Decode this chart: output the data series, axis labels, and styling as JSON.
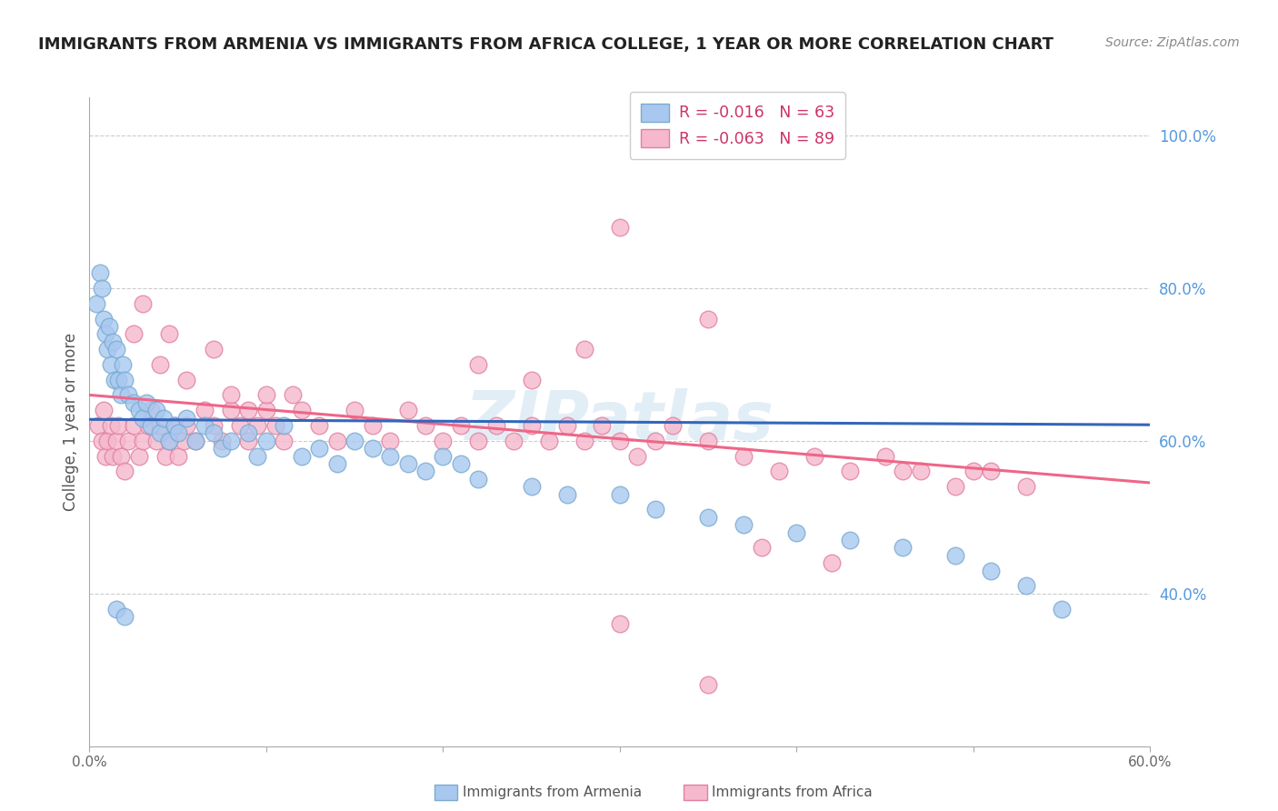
{
  "title": "IMMIGRANTS FROM ARMENIA VS IMMIGRANTS FROM AFRICA COLLEGE, 1 YEAR OR MORE CORRELATION CHART",
  "source": "Source: ZipAtlas.com",
  "ylabel": "College, 1 year or more",
  "xlim": [
    0.0,
    0.6
  ],
  "ylim": [
    0.2,
    1.05
  ],
  "grid_color": "#cccccc",
  "watermark": "ZIPatlas",
  "legend_r_armenia": "-0.016",
  "legend_n_armenia": "63",
  "legend_r_africa": "-0.063",
  "legend_n_africa": "89",
  "armenia_color": "#a8c8f0",
  "armenia_edge_color": "#7aaad0",
  "africa_color": "#f5b8cc",
  "africa_edge_color": "#e080a0",
  "armenia_line_color": "#3366bb",
  "africa_line_color": "#ee6688",
  "right_tick_color": "#5599dd",
  "title_fontsize": 13,
  "background_color": "#ffffff",
  "armenia_x": [
    0.004,
    0.006,
    0.007,
    0.008,
    0.009,
    0.01,
    0.011,
    0.012,
    0.013,
    0.014,
    0.015,
    0.016,
    0.018,
    0.019,
    0.02,
    0.022,
    0.025,
    0.028,
    0.03,
    0.032,
    0.035,
    0.038,
    0.04,
    0.042,
    0.045,
    0.048,
    0.05,
    0.055,
    0.06,
    0.065,
    0.07,
    0.075,
    0.08,
    0.09,
    0.095,
    0.1,
    0.11,
    0.12,
    0.13,
    0.14,
    0.15,
    0.16,
    0.17,
    0.18,
    0.19,
    0.2,
    0.21,
    0.22,
    0.25,
    0.27,
    0.3,
    0.32,
    0.35,
    0.37,
    0.4,
    0.43,
    0.46,
    0.49,
    0.51,
    0.53,
    0.55,
    0.015,
    0.02
  ],
  "armenia_y": [
    0.78,
    0.82,
    0.8,
    0.76,
    0.74,
    0.72,
    0.75,
    0.7,
    0.73,
    0.68,
    0.72,
    0.68,
    0.66,
    0.7,
    0.68,
    0.66,
    0.65,
    0.64,
    0.63,
    0.65,
    0.62,
    0.64,
    0.61,
    0.63,
    0.6,
    0.62,
    0.61,
    0.63,
    0.6,
    0.62,
    0.61,
    0.59,
    0.6,
    0.61,
    0.58,
    0.6,
    0.62,
    0.58,
    0.59,
    0.57,
    0.6,
    0.59,
    0.58,
    0.57,
    0.56,
    0.58,
    0.57,
    0.55,
    0.54,
    0.53,
    0.53,
    0.51,
    0.5,
    0.49,
    0.48,
    0.47,
    0.46,
    0.45,
    0.43,
    0.41,
    0.38,
    0.38,
    0.37
  ],
  "africa_x": [
    0.005,
    0.007,
    0.008,
    0.009,
    0.01,
    0.012,
    0.013,
    0.015,
    0.016,
    0.018,
    0.02,
    0.022,
    0.025,
    0.028,
    0.03,
    0.033,
    0.035,
    0.038,
    0.04,
    0.043,
    0.045,
    0.048,
    0.05,
    0.053,
    0.055,
    0.06,
    0.065,
    0.07,
    0.075,
    0.08,
    0.085,
    0.09,
    0.095,
    0.1,
    0.105,
    0.11,
    0.115,
    0.12,
    0.13,
    0.14,
    0.15,
    0.16,
    0.17,
    0.18,
    0.19,
    0.2,
    0.21,
    0.22,
    0.23,
    0.24,
    0.25,
    0.26,
    0.27,
    0.28,
    0.29,
    0.3,
    0.31,
    0.32,
    0.33,
    0.35,
    0.37,
    0.39,
    0.41,
    0.43,
    0.45,
    0.47,
    0.49,
    0.51,
    0.53,
    0.3,
    0.35,
    0.28,
    0.25,
    0.22,
    0.38,
    0.42,
    0.46,
    0.35,
    0.3,
    0.5,
    0.03,
    0.025,
    0.04,
    0.045,
    0.055,
    0.07,
    0.08,
    0.09,
    0.1
  ],
  "africa_y": [
    0.62,
    0.6,
    0.64,
    0.58,
    0.6,
    0.62,
    0.58,
    0.6,
    0.62,
    0.58,
    0.56,
    0.6,
    0.62,
    0.58,
    0.6,
    0.62,
    0.64,
    0.6,
    0.62,
    0.58,
    0.6,
    0.62,
    0.58,
    0.6,
    0.62,
    0.6,
    0.64,
    0.62,
    0.6,
    0.64,
    0.62,
    0.6,
    0.62,
    0.64,
    0.62,
    0.6,
    0.66,
    0.64,
    0.62,
    0.6,
    0.64,
    0.62,
    0.6,
    0.64,
    0.62,
    0.6,
    0.62,
    0.6,
    0.62,
    0.6,
    0.62,
    0.6,
    0.62,
    0.6,
    0.62,
    0.6,
    0.58,
    0.6,
    0.62,
    0.6,
    0.58,
    0.56,
    0.58,
    0.56,
    0.58,
    0.56,
    0.54,
    0.56,
    0.54,
    0.88,
    0.76,
    0.72,
    0.68,
    0.7,
    0.46,
    0.44,
    0.56,
    0.28,
    0.36,
    0.56,
    0.78,
    0.74,
    0.7,
    0.74,
    0.68,
    0.72,
    0.66,
    0.64,
    0.66
  ],
  "armenia_trend_x": [
    0.0,
    0.6
  ],
  "armenia_trend_y": [
    0.628,
    0.621
  ],
  "africa_trend_x": [
    0.0,
    0.6
  ],
  "africa_trend_y": [
    0.66,
    0.545
  ]
}
